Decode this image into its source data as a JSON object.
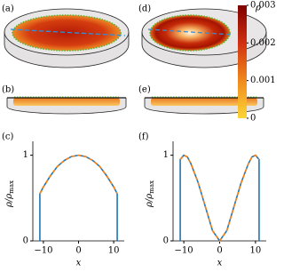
{
  "panels": {
    "a": "(a)",
    "b": "(b)",
    "c": "(c)",
    "d": "(d)",
    "e": "(e)",
    "f": "(f)"
  },
  "chart_data": [
    {
      "type": "line",
      "x_label": "x",
      "y_label": "ρ/ρ",
      "y_label_sub": "max",
      "x": [
        -11,
        -11,
        -10,
        -8,
        -6,
        -4,
        -2,
        0,
        2,
        4,
        6,
        8,
        10,
        11,
        11
      ],
      "series": [
        {
          "color": "#1f77b4",
          "values": [
            0,
            0.55,
            0.63,
            0.76,
            0.87,
            0.94,
            0.985,
            1,
            0.985,
            0.94,
            0.87,
            0.76,
            0.63,
            0.55,
            0
          ]
        },
        {
          "color": "#ff7f0e",
          "dashed": true,
          "values": [
            null,
            0.55,
            0.63,
            0.76,
            0.87,
            0.94,
            0.985,
            1,
            0.985,
            0.94,
            0.87,
            0.76,
            0.63,
            0.55,
            null
          ]
        }
      ],
      "xlim": [
        -13,
        13
      ],
      "xticks": [
        {
          "value": -10,
          "label": "−10"
        },
        0,
        10
      ],
      "ylim": [
        0,
        1.1
      ],
      "yticks": [
        0,
        1
      ]
    },
    {
      "type": "line",
      "x_label": "x",
      "y_label": "ρ/ρ",
      "y_label_sub": "max",
      "x": [
        -11,
        -11,
        -10,
        -9,
        -8,
        -6,
        -4,
        -2,
        0,
        2,
        4,
        6,
        8,
        9,
        10,
        11,
        11
      ],
      "series": [
        {
          "color": "#1f77b4",
          "values": [
            0,
            0.95,
            1,
            0.98,
            0.9,
            0.68,
            0.4,
            0.12,
            0,
            0.12,
            0.4,
            0.68,
            0.9,
            0.98,
            1,
            0.95,
            0
          ]
        },
        {
          "color": "#ff7f0e",
          "dashed": true,
          "values": [
            null,
            0.95,
            1,
            0.98,
            0.9,
            0.68,
            0.4,
            0.12,
            0,
            0.12,
            0.4,
            0.68,
            0.9,
            0.98,
            1,
            0.95,
            null
          ]
        }
      ],
      "xlim": [
        -13,
        13
      ],
      "xticks": [
        {
          "value": -10,
          "label": "−10"
        },
        0,
        10
      ],
      "ylim": [
        0,
        1.1
      ],
      "yticks": [
        0,
        1
      ]
    },
    {
      "type": "colorbar",
      "label": "ρ",
      "colors": [
        "#fcd535",
        "#f08a1c",
        "#d03010",
        "#7f0000"
      ],
      "ylim": [
        0,
        0.003
      ],
      "yticks": [
        0,
        0.001,
        0.002,
        0.003
      ]
    }
  ]
}
